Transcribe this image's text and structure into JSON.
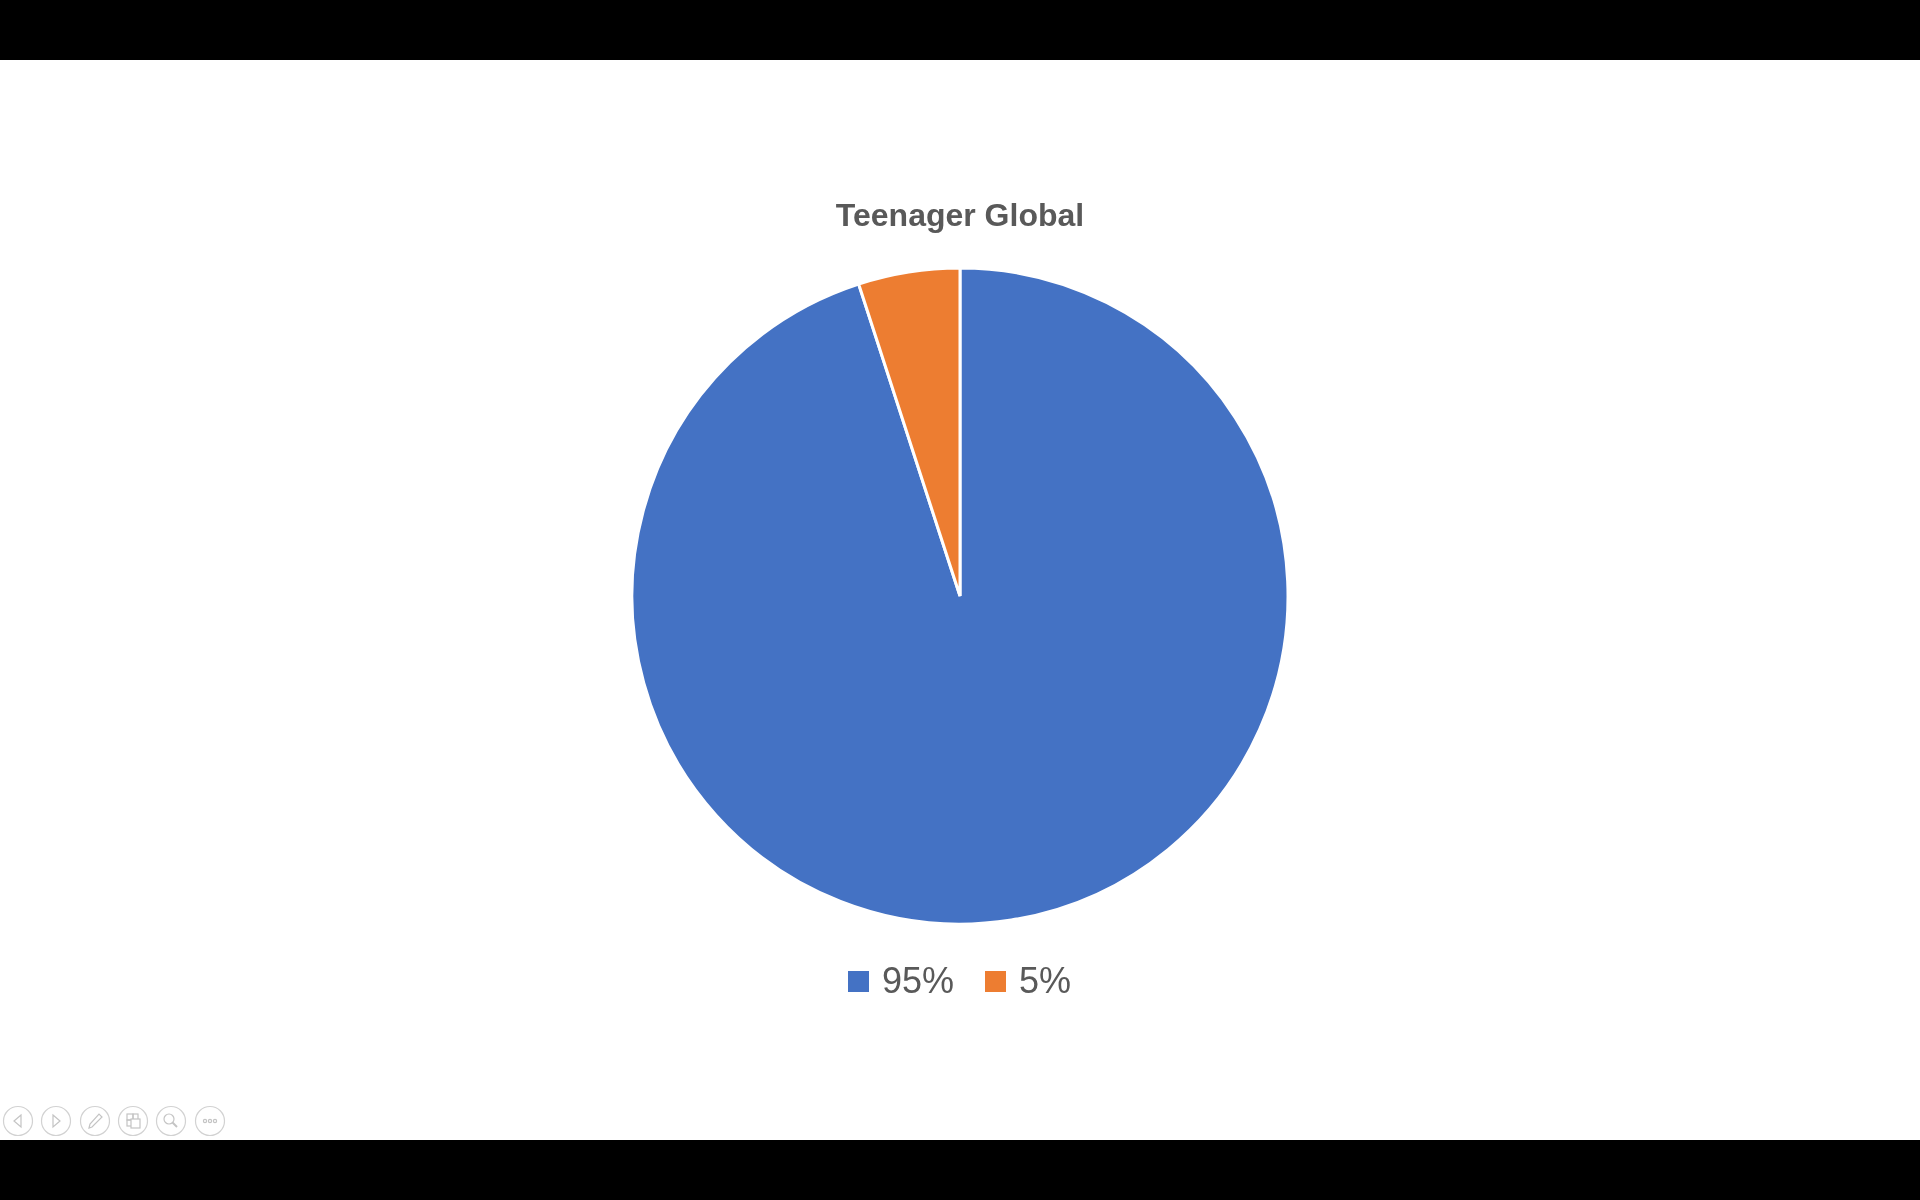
{
  "chart_data": {
    "type": "pie",
    "title": "Teenager Global",
    "categories": [
      "95%",
      "5%"
    ],
    "values": [
      95,
      5
    ],
    "colors": [
      "#4472c4",
      "#ed7d31"
    ],
    "legend": "bottom"
  }
}
